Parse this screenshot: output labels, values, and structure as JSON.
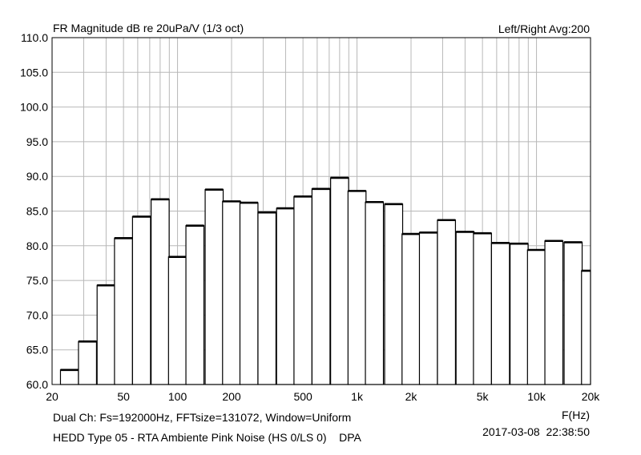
{
  "chart_data": {
    "type": "bar",
    "title": "FR Magnitude dB re 20uPa/V (1/3 oct)",
    "legend_text": "Left/Right  Avg:200",
    "xlabel": "F(Hz)",
    "x_scale": "log",
    "xlim": [
      20,
      20000
    ],
    "ylim": [
      60,
      110
    ],
    "grid": true,
    "y_ticks": [
      "60.0",
      "65.0",
      "70.0",
      "75.0",
      "80.0",
      "85.0",
      "90.0",
      "95.0",
      "100.0",
      "105.0",
      "110.0"
    ],
    "x_ticks": [
      {
        "value": 20,
        "label": "20"
      },
      {
        "value": 50,
        "label": "50"
      },
      {
        "value": 100,
        "label": "100"
      },
      {
        "value": 200,
        "label": "200"
      },
      {
        "value": 500,
        "label": "500"
      },
      {
        "value": 1000,
        "label": "1k"
      },
      {
        "value": 2000,
        "label": "2k"
      },
      {
        "value": 5000,
        "label": "5k"
      },
      {
        "value": 10000,
        "label": "10k"
      },
      {
        "value": 20000,
        "label": "20k"
      }
    ],
    "categories": [
      "25",
      "31.5",
      "40",
      "50",
      "63",
      "80",
      "100",
      "125",
      "160",
      "200",
      "250",
      "315",
      "400",
      "500",
      "630",
      "800",
      "1000",
      "1250",
      "1600",
      "2000",
      "2500",
      "3150",
      "4000",
      "5000",
      "6300",
      "8000",
      "10000",
      "12500",
      "16000",
      "20000"
    ],
    "values": [
      62.1,
      66.2,
      74.3,
      81.1,
      84.2,
      86.7,
      78.4,
      82.9,
      88.1,
      86.4,
      86.2,
      84.8,
      85.4,
      87.1,
      88.2,
      89.8,
      87.9,
      86.3,
      86.0,
      81.7,
      81.9,
      83.7,
      82.0,
      81.8,
      80.4,
      80.3,
      79.4,
      80.7,
      80.5,
      76.4
    ]
  },
  "footer": {
    "info": "Dual Ch: Fs=192000Hz, FFTsize=131072, Window=Uniform",
    "device": "HEDD Type 05 - RTA Ambiente Pink Noise (HS 0/LS 0)    DPA",
    "timestamp": "2017-03-08  22:38:50"
  }
}
